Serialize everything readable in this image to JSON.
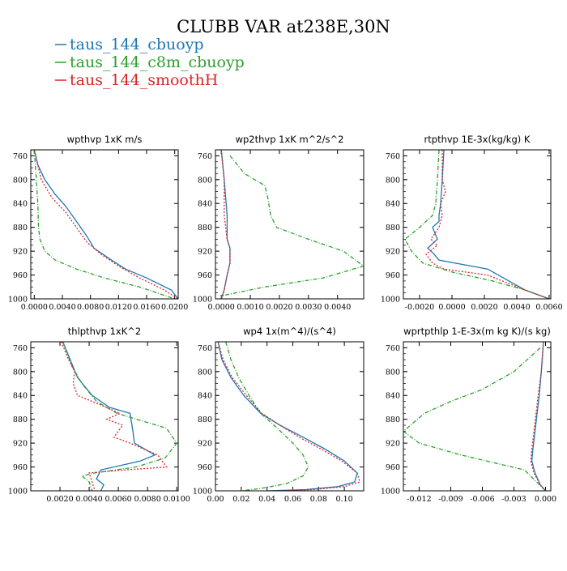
{
  "title": "CLUBB VAR at238E,30N",
  "colors": {
    "s0": "#1f77b4",
    "s1": "#2ca02c",
    "s2": "#d62728",
    "axis": "#000000"
  },
  "legend": [
    {
      "label": "taus_144_cbuoyp",
      "color": "#1f77b4"
    },
    {
      "label": "taus_144_c8m_cbuoyp",
      "color": "#2ca02c"
    },
    {
      "label": "taus_144_smoothH",
      "color": "#d62728"
    }
  ],
  "chart_data": [
    {
      "type": "line",
      "title": "wpthvp   1xK m/s",
      "xlim": [
        -0.0005,
        0.0205
      ],
      "ylim": [
        1000,
        750
      ],
      "xticks": [
        "0.0000",
        "0.0040",
        "0.0080",
        "0.0120",
        "0.0160",
        "0.0200"
      ],
      "xtick_values": [
        0.0,
        0.004,
        0.008,
        0.012,
        0.016,
        0.02
      ],
      "yticks": [
        "760",
        "800",
        "840",
        "880",
        "920",
        "960",
        "1000"
      ],
      "ytick_values": [
        760,
        800,
        840,
        880,
        920,
        960,
        1000
      ],
      "series": [
        {
          "name": "taus_144_cbuoyp",
          "x": [
            0.0,
            0.0005,
            0.0015,
            0.003,
            0.0045,
            0.006,
            0.0075,
            0.0085,
            0.011,
            0.013,
            0.016,
            0.0195,
            0.0205
          ],
          "y": [
            750,
            775,
            800,
            825,
            845,
            870,
            895,
            915,
            935,
            950,
            965,
            985,
            1000
          ]
        },
        {
          "name": "taus_144_c8m_cbuoyp",
          "x": [
            0.0,
            0.0003,
            0.0005,
            0.0006,
            0.0008,
            0.0015,
            0.003,
            0.006,
            0.01,
            0.015,
            0.02
          ],
          "y": [
            750,
            800,
            840,
            880,
            900,
            920,
            935,
            950,
            965,
            980,
            1000
          ]
        },
        {
          "name": "taus_144_smoothH",
          "x": [
            0.0,
            0.001,
            0.0025,
            0.0045,
            0.006,
            0.0075,
            0.0095,
            0.012,
            0.015,
            0.0185,
            0.0205
          ],
          "y": [
            750,
            800,
            830,
            855,
            880,
            905,
            925,
            945,
            965,
            985,
            1000
          ]
        }
      ]
    },
    {
      "type": "line",
      "title": "wp2thvp   1xK m^2/s^2",
      "xlim": [
        -0.0002,
        0.0049
      ],
      "ylim": [
        1000,
        750
      ],
      "xticks": [
        "0.0000",
        "0.0010",
        "0.0020",
        "0.0030",
        "0.0040"
      ],
      "xtick_values": [
        0.0,
        0.001,
        0.002,
        0.003,
        0.004
      ],
      "yticks": [
        "760",
        "800",
        "840",
        "880",
        "920",
        "960",
        "1000"
      ],
      "ytick_values": [
        760,
        800,
        840,
        880,
        920,
        960,
        1000
      ],
      "series": [
        {
          "name": "taus_144_cbuoyp",
          "x": [
            0.0,
            0.0001,
            0.0002,
            0.0002,
            0.0003,
            0.0003,
            0.0002,
            0.0001,
            0.0
          ],
          "y": [
            750,
            800,
            860,
            900,
            915,
            940,
            960,
            985,
            1000
          ]
        },
        {
          "name": "taus_144_c8m_cbuoyp",
          "x": [
            0.0003,
            0.0008,
            0.0015,
            0.0016,
            0.0017,
            0.0019,
            0.003,
            0.0042,
            0.0049,
            0.0035,
            0.0015,
            0.0,
            0.0
          ],
          "y": [
            760,
            790,
            810,
            830,
            860,
            880,
            900,
            920,
            945,
            965,
            980,
            995,
            1000
          ]
        },
        {
          "name": "taus_144_smoothH",
          "x": [
            0.0,
            0.0001,
            0.0001,
            0.0002,
            0.0003,
            0.0003,
            0.0002,
            0.0001,
            0.0
          ],
          "y": [
            750,
            800,
            860,
            900,
            915,
            940,
            960,
            985,
            1000
          ]
        }
      ]
    },
    {
      "type": "line",
      "title": "rtpthvp   1E-3x(kg/kg) K",
      "xlim": [
        -0.003,
        0.0061
      ],
      "ylim": [
        1000,
        750
      ],
      "xticks": [
        "-0.0020",
        "0.0000",
        "0.0020",
        "0.0040",
        "0.0060"
      ],
      "xtick_values": [
        -0.002,
        0.0,
        0.002,
        0.004,
        0.006
      ],
      "yticks": [
        "760",
        "800",
        "840",
        "880",
        "920",
        "960",
        "1000"
      ],
      "ytick_values": [
        760,
        800,
        840,
        880,
        920,
        960,
        1000
      ],
      "series": [
        {
          "name": "taus_144_cbuoyp",
          "x": [
            -0.0005,
            -0.0006,
            -0.0007,
            -0.0008,
            -0.0008,
            -0.0012,
            -0.0009,
            -0.0015,
            -0.0011,
            -0.0008,
            0.0022,
            0.0045,
            0.006
          ],
          "y": [
            750,
            800,
            840,
            860,
            870,
            880,
            900,
            915,
            925,
            935,
            950,
            985,
            1000
          ]
        },
        {
          "name": "taus_144_c8m_cbuoyp",
          "x": [
            -0.0008,
            -0.0009,
            -0.001,
            -0.0012,
            -0.002,
            -0.0029,
            -0.0025,
            -0.0018,
            0.0,
            0.0025,
            0.0045,
            0.006
          ],
          "y": [
            750,
            800,
            840,
            860,
            880,
            900,
            920,
            940,
            955,
            970,
            985,
            1000
          ]
        },
        {
          "name": "taus_144_smoothH",
          "x": [
            -0.0006,
            -0.0006,
            -0.0004,
            -0.0007,
            -0.0006,
            -0.0008,
            -0.0013,
            -0.0009,
            -0.0016,
            -0.0012,
            -0.0005,
            0.0022,
            0.0045,
            0.006
          ],
          "y": [
            750,
            800,
            820,
            840,
            860,
            880,
            900,
            910,
            925,
            940,
            950,
            960,
            985,
            1000
          ]
        }
      ]
    },
    {
      "type": "line",
      "title": "thlpthvp   1xK^2",
      "xlim": [
        0.0,
        0.0101
      ],
      "ylim": [
        1000,
        750
      ],
      "xticks": [
        "0.0020",
        "0.0040",
        "0.0060",
        "0.0080",
        "0.0100"
      ],
      "xtick_values": [
        0.002,
        0.004,
        0.006,
        0.008,
        0.01
      ],
      "yticks": [
        "760",
        "800",
        "840",
        "880",
        "920",
        "960",
        "1000"
      ],
      "ytick_values": [
        760,
        800,
        840,
        880,
        920,
        960,
        1000
      ],
      "series": [
        {
          "name": "taus_144_cbuoyp",
          "x": [
            0.0022,
            0.0027,
            0.0032,
            0.0042,
            0.0054,
            0.0068,
            0.007,
            0.0071,
            0.0085,
            0.0075,
            0.0048,
            0.0045,
            0.005,
            0.0048
          ],
          "y": [
            750,
            780,
            810,
            840,
            860,
            870,
            900,
            920,
            940,
            950,
            965,
            980,
            990,
            1000
          ]
        },
        {
          "name": "taus_144_c8m_cbuoyp",
          "x": [
            0.0022,
            0.0028,
            0.0035,
            0.0045,
            0.0059,
            0.0093,
            0.01,
            0.0092,
            0.0072,
            0.0044,
            0.0035,
            0.004,
            0.0042
          ],
          "y": [
            750,
            790,
            820,
            850,
            870,
            895,
            920,
            945,
            960,
            970,
            975,
            985,
            1000
          ]
        },
        {
          "name": "taus_144_smoothH",
          "x": [
            0.0021,
            0.0025,
            0.003,
            0.0029,
            0.0032,
            0.0047,
            0.0061,
            0.0052,
            0.0063,
            0.0057,
            0.0068,
            0.0087,
            0.0093,
            0.0065,
            0.004,
            0.0042,
            0.0044
          ],
          "y": [
            750,
            775,
            800,
            820,
            840,
            855,
            870,
            880,
            890,
            910,
            920,
            940,
            960,
            965,
            970,
            985,
            1000
          ]
        }
      ]
    },
    {
      "type": "line",
      "title": "wp4   1x(m^4)/(s^4)",
      "xlim": [
        0.0,
        0.115
      ],
      "ylim": [
        1000,
        750
      ],
      "xticks": [
        "0.00",
        "0.02",
        "0.04",
        "0.06",
        "0.08",
        "0.10"
      ],
      "xtick_values": [
        0.0,
        0.02,
        0.04,
        0.06,
        0.08,
        0.1
      ],
      "yticks": [
        "760",
        "800",
        "840",
        "880",
        "920",
        "960",
        "1000"
      ],
      "ytick_values": [
        760,
        800,
        840,
        880,
        920,
        960,
        1000
      ],
      "series": [
        {
          "name": "taus_144_cbuoyp",
          "x": [
            0.002,
            0.005,
            0.012,
            0.022,
            0.035,
            0.05,
            0.068,
            0.085,
            0.1,
            0.11,
            0.108,
            0.095,
            0.07,
            0.04
          ],
          "y": [
            750,
            780,
            810,
            840,
            870,
            890,
            910,
            930,
            950,
            970,
            985,
            993,
            998,
            1000
          ]
        },
        {
          "name": "taus_144_c8m_cbuoyp",
          "x": [
            0.008,
            0.012,
            0.018,
            0.026,
            0.035,
            0.048,
            0.06,
            0.068,
            0.072,
            0.068,
            0.055,
            0.035,
            0.02
          ],
          "y": [
            750,
            780,
            810,
            840,
            870,
            895,
            920,
            940,
            960,
            975,
            988,
            996,
            1000
          ]
        },
        {
          "name": "taus_144_smoothH",
          "x": [
            0.002,
            0.006,
            0.013,
            0.024,
            0.036,
            0.05,
            0.065,
            0.082,
            0.098,
            0.11,
            0.112,
            0.1,
            0.075,
            0.05
          ],
          "y": [
            750,
            780,
            810,
            840,
            870,
            890,
            910,
            930,
            950,
            970,
            985,
            993,
            998,
            1000
          ]
        }
      ]
    },
    {
      "type": "line",
      "title": "wprtpthlp   1-E-3x(m kg K)/(s kg)",
      "xlim": [
        -0.0135,
        0.0005
      ],
      "ylim": [
        1000,
        750
      ],
      "xticks": [
        "-0.012",
        "-0.009",
        "-0.006",
        "-0.003",
        "0.000"
      ],
      "xtick_values": [
        -0.012,
        -0.009,
        -0.006,
        -0.003,
        0.0
      ],
      "yticks": [
        "760",
        "800",
        "840",
        "880",
        "920",
        "960",
        "1000"
      ],
      "ytick_values": [
        760,
        800,
        840,
        880,
        920,
        960,
        1000
      ],
      "series": [
        {
          "name": "taus_144_cbuoyp",
          "x": [
            -0.0002,
            -0.0004,
            -0.0006,
            -0.0008,
            -0.001,
            -0.0012,
            -0.0013,
            -0.001,
            -0.0005,
            0.0
          ],
          "y": [
            750,
            800,
            840,
            870,
            900,
            930,
            950,
            970,
            990,
            1000
          ]
        },
        {
          "name": "taus_144_c8m_cbuoyp",
          "x": [
            -0.0005,
            -0.003,
            -0.006,
            -0.009,
            -0.0115,
            -0.0135,
            -0.012,
            -0.008,
            -0.002,
            0.0
          ],
          "y": [
            760,
            800,
            830,
            850,
            870,
            900,
            920,
            940,
            965,
            1000
          ]
        },
        {
          "name": "taus_144_smoothH",
          "x": [
            -0.0002,
            -0.0004,
            -0.0007,
            -0.0009,
            -0.0011,
            -0.0013,
            -0.0014,
            -0.0011,
            -0.0005,
            0.0
          ],
          "y": [
            750,
            800,
            840,
            870,
            900,
            930,
            950,
            970,
            990,
            1000
          ]
        }
      ]
    }
  ]
}
